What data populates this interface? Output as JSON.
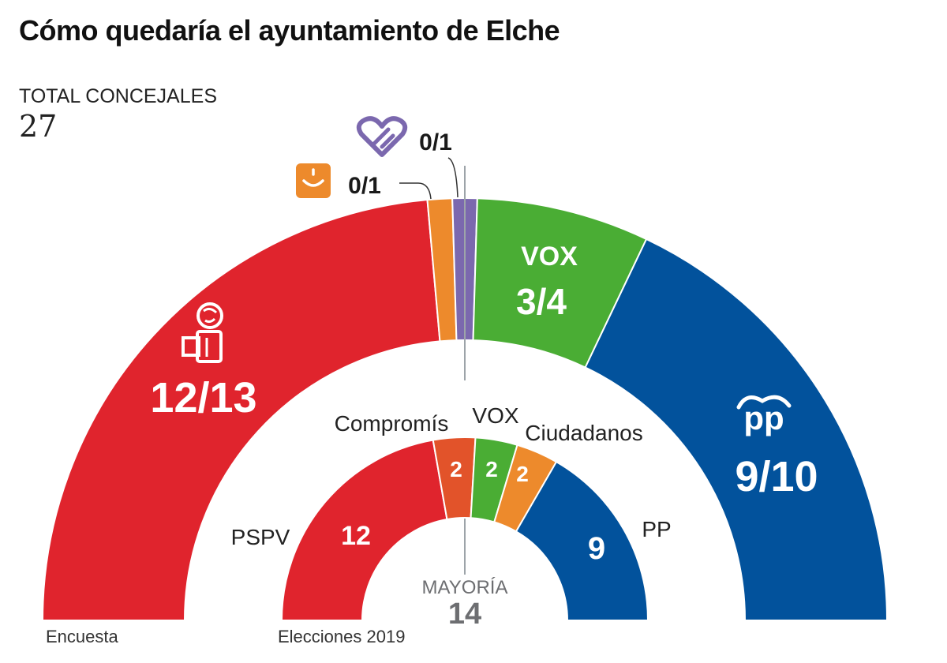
{
  "title": "Cómo quedaría el ayuntamiento de Elche",
  "total": {
    "label": "TOTAL CONCEJALES",
    "value": "27"
  },
  "majority": {
    "label": "MAYORÍA",
    "value": "14"
  },
  "colors": {
    "pspv": "#e0242d",
    "compromis": "#e2532a",
    "podemos": "#7b68ae",
    "cs": "#ed8a2c",
    "vox": "#4aad34",
    "pp": "#02529c",
    "text_gray": "#6d6e71",
    "divider": "#9da4a9"
  },
  "chart_data": [
    {
      "type": "semicircle",
      "name": "Encuesta",
      "footer": "Encuesta",
      "total": 27,
      "segments": [
        {
          "party": "PSOE",
          "seats": 12.5,
          "label": "12/13",
          "color": "#e0242d",
          "icon": "psoe-rose-fist-icon"
        },
        {
          "party": "Cs",
          "seats": 0.5,
          "label": "0/1",
          "color": "#ed8a2c",
          "icon": "ciudadanos-smile-icon"
        },
        {
          "party": "Unidas Podemos",
          "seats": 0.5,
          "label": "0/1",
          "color": "#7b68ae",
          "icon": "podemos-heart-icon"
        },
        {
          "party": "VOX",
          "seats": 3.5,
          "label": "3/4",
          "color": "#4aad34",
          "icon": "vox-logo-icon",
          "logo_text": "VOX"
        },
        {
          "party": "PP",
          "seats": 9.5,
          "label": "9/10",
          "color": "#02529c",
          "icon": "pp-logo-icon",
          "logo_text": "pp"
        }
      ]
    },
    {
      "type": "semicircle",
      "name": "Elecciones 2019",
      "footer": "Elecciones 2019",
      "total": 27,
      "segments": [
        {
          "party": "PSPV",
          "seats": 12,
          "label": "12",
          "name_label": "PSPV",
          "color": "#e0242d"
        },
        {
          "party": "Compromís",
          "seats": 2,
          "label": "2",
          "name_label": "Compromís",
          "color": "#e2532a"
        },
        {
          "party": "VOX",
          "seats": 2,
          "label": "2",
          "name_label": "VOX",
          "color": "#4aad34"
        },
        {
          "party": "Ciudadanos",
          "seats": 2,
          "label": "2",
          "name_label": "Ciudadanos",
          "color": "#ed8a2c"
        },
        {
          "party": "PP",
          "seats": 9,
          "label": "9",
          "name_label": "PP",
          "color": "#02529c"
        }
      ]
    }
  ]
}
